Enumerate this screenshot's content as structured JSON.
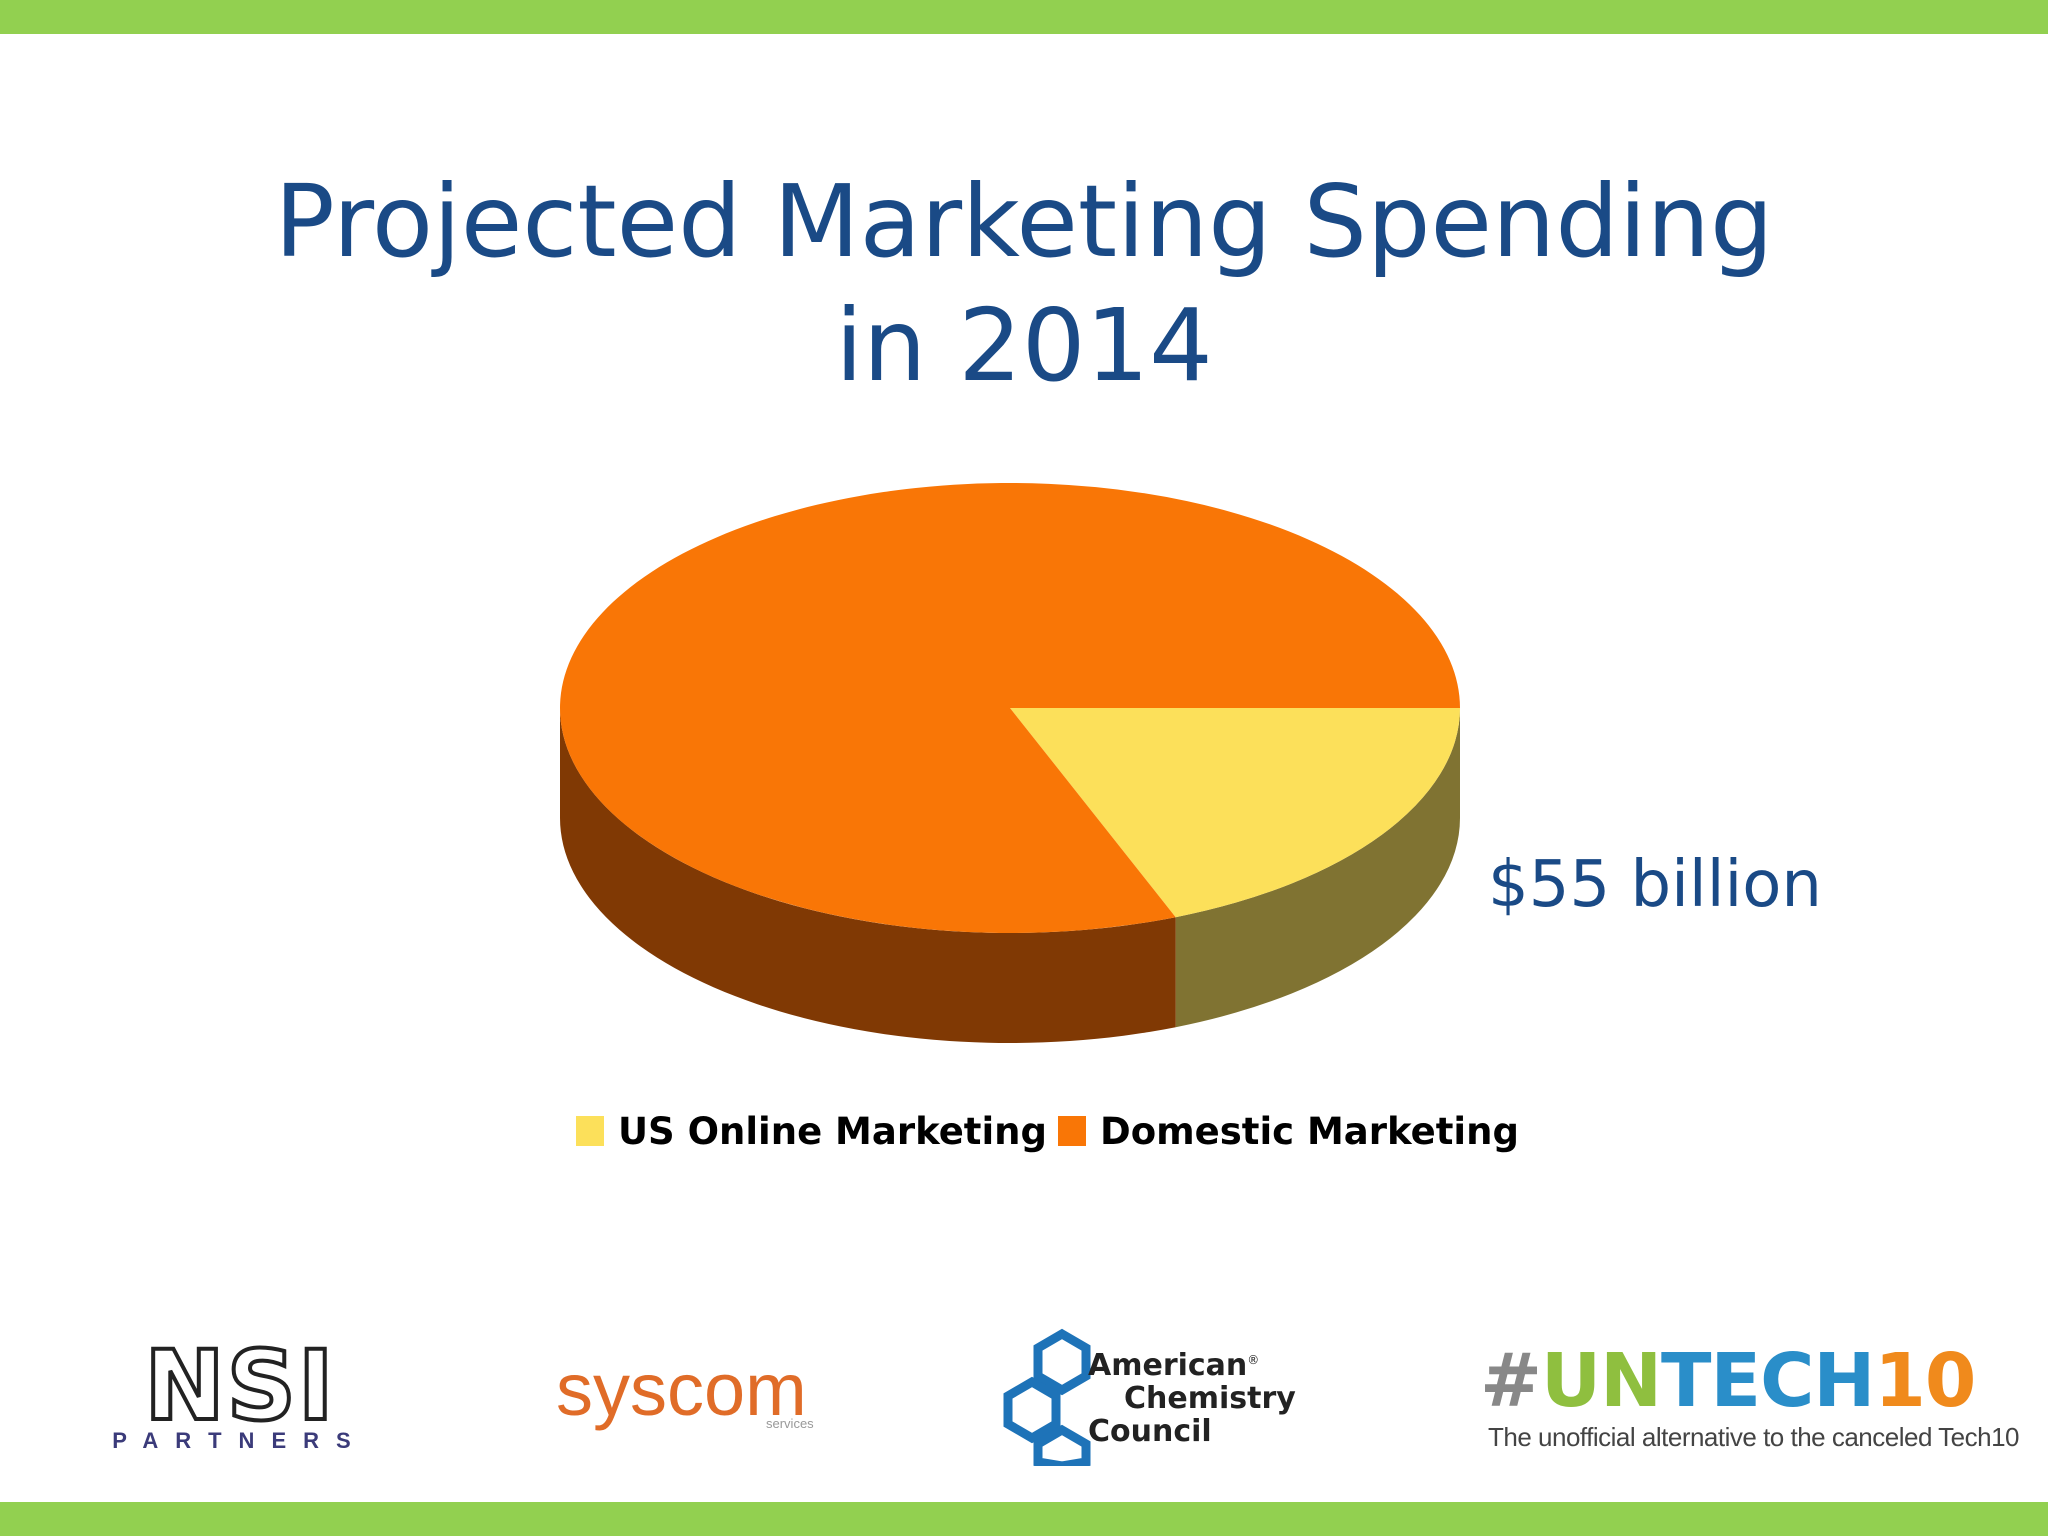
{
  "slide": {
    "title_line1": "Projected Marketing Spending",
    "title_line2": "in 2014"
  },
  "colors": {
    "accent_bar": "#92d050",
    "title_text": "#1a4a86",
    "legend_text": "#000000"
  },
  "chart_data": {
    "type": "pie",
    "style": "3d",
    "slices": [
      {
        "label": "US Online Marketing",
        "value": 19,
        "color": "#fce05a",
        "side_color": "#807332"
      },
      {
        "label": "Domestic Marketing",
        "value": 81,
        "color": "#f97606",
        "side_color": "#803904"
      }
    ],
    "annotations": [
      {
        "text": "$55 billion",
        "refers_to": "US Online Marketing"
      }
    ],
    "legend": {
      "placement": "bottom"
    }
  },
  "logos": {
    "nsi": {
      "main": "NSI",
      "sub": "PARTNERS"
    },
    "syscom": {
      "main": "syscom",
      "sub": "services",
      "color": "#e06c28"
    },
    "acc": {
      "line1": "American",
      "mark": "®",
      "line2": "Chemistry",
      "line3": "Council",
      "color": "#1e73b8"
    },
    "untech": {
      "hash": "#",
      "un": "UN",
      "tech": "TECH",
      "num": "10",
      "hash_color": "#888888",
      "un_color": "#8fbf3f",
      "tech_color": "#2a8ec9",
      "num_color": "#f08a1c",
      "tagline": "The unofficial alternative to the canceled Tech10"
    }
  }
}
